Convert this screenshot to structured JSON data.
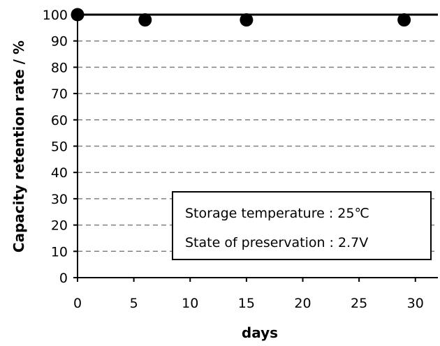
{
  "chart_data": {
    "type": "scatter",
    "title": "",
    "xlabel": "days",
    "ylabel": "Capacity retention rate / %",
    "xlim": [
      0,
      32
    ],
    "ylim": [
      0,
      100
    ],
    "xticks": [
      0,
      5,
      10,
      15,
      20,
      25,
      30
    ],
    "yticks": [
      0,
      10,
      20,
      30,
      40,
      50,
      60,
      70,
      80,
      90,
      100
    ],
    "grid": "horizontal-dashed",
    "reference_line": 100,
    "series": [
      {
        "x": [
          0,
          6,
          15,
          29
        ],
        "y": [
          100,
          98,
          98,
          98
        ]
      }
    ],
    "annotation": {
      "position": "bottom-right",
      "lines": [
        "Storage temperature : 25℃",
        "State of preservation : 2.7V"
      ]
    },
    "colors": {
      "marker": "#000000",
      "grid": "#808080",
      "axis": "#000000"
    }
  }
}
